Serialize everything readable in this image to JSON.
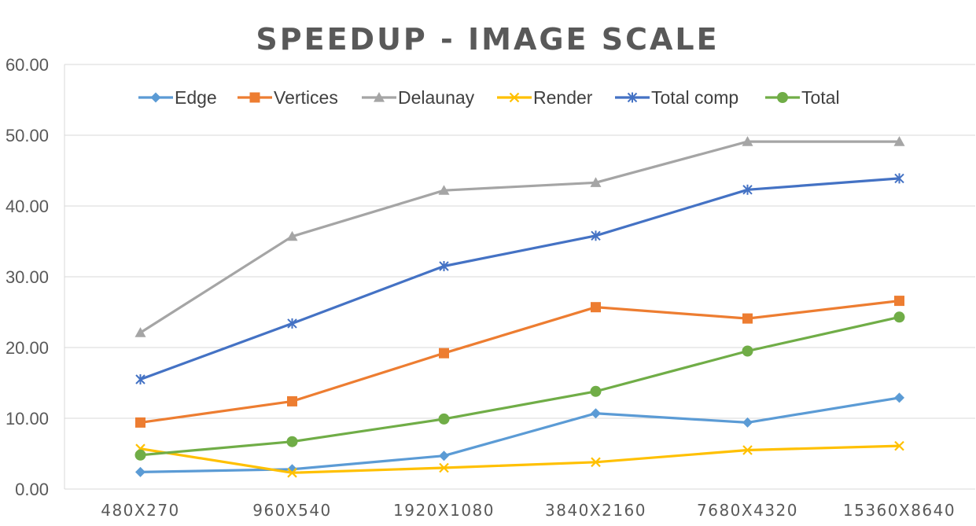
{
  "chart_data": {
    "type": "line",
    "title": "SPEEDUP - IMAGE SCALE",
    "xlabel": "",
    "ylabel": "",
    "categories": [
      "480X270",
      "960X540",
      "1920X1080",
      "3840X2160",
      "7680X4320",
      "15360X8640"
    ],
    "ylim": [
      0,
      60
    ],
    "yticks": [
      "0.00",
      "10.00",
      "20.00",
      "30.00",
      "40.00",
      "50.00",
      "60.00"
    ],
    "grid": true,
    "legend_position": "top",
    "series": [
      {
        "name": "Edge",
        "color": "#5b9bd5",
        "marker": "diamond",
        "values": [
          2.4,
          2.8,
          4.7,
          10.7,
          9.4,
          12.9
        ]
      },
      {
        "name": "Vertices",
        "color": "#ed7d31",
        "marker": "square",
        "values": [
          9.4,
          12.4,
          19.2,
          25.7,
          24.1,
          26.6
        ]
      },
      {
        "name": "Delaunay",
        "color": "#a5a5a5",
        "marker": "triangle",
        "values": [
          22.1,
          35.7,
          42.2,
          43.3,
          49.1,
          49.1
        ]
      },
      {
        "name": "Render",
        "color": "#ffc000",
        "marker": "x",
        "values": [
          5.7,
          2.3,
          3.0,
          3.8,
          5.5,
          6.1
        ]
      },
      {
        "name": "Total comp",
        "color": "#4472c4",
        "marker": "asterisk",
        "values": [
          15.5,
          23.4,
          31.5,
          35.8,
          42.3,
          43.9
        ]
      },
      {
        "name": "Total",
        "color": "#70ad47",
        "marker": "circle",
        "values": [
          4.8,
          6.7,
          9.9,
          13.8,
          19.5,
          24.3
        ]
      }
    ]
  }
}
